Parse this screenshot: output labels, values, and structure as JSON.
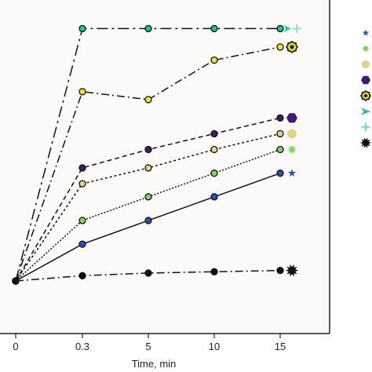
{
  "chart_data": {
    "type": "line",
    "title": "",
    "xlabel": "Time, min",
    "ylabel": "",
    "x": [
      0,
      0.3,
      5,
      10,
      15
    ],
    "x_tick_labels": [
      "0",
      "0.3",
      "5",
      "10",
      "15"
    ],
    "ylim": [
      0,
      1
    ],
    "grid": false,
    "plot_background": "#fbfaf9",
    "legend_placement": "right (markers only, labels not visible)",
    "series": [
      {
        "values": [
          0.0,
          0.96,
          0.96,
          0.96,
          0.96
        ],
        "color": "#10c9a0",
        "marker": "arrow-cross",
        "dash": "long-dash"
      },
      {
        "values": [
          0.0,
          0.72,
          0.69,
          0.84,
          0.89
        ],
        "color": "#f3e233",
        "marker": "octagon-star",
        "dash": "dash-dot"
      },
      {
        "values": [
          0.0,
          0.43,
          0.5,
          0.56,
          0.62
        ],
        "color": "#3d1a73",
        "marker": "hexagon",
        "dash": "dash"
      },
      {
        "values": [
          0.0,
          0.37,
          0.43,
          0.5,
          0.56
        ],
        "color": "#dcd68a",
        "marker": "circle",
        "dash": "dot"
      },
      {
        "values": [
          0.0,
          0.23,
          0.32,
          0.41,
          0.5
        ],
        "color": "#7ed957",
        "marker": "starburst",
        "dash": "dense-dot"
      },
      {
        "values": [
          0.0,
          0.14,
          0.23,
          0.32,
          0.41
        ],
        "color": "#2f4fb8",
        "marker": "star",
        "dash": "solid"
      },
      {
        "values": [
          0.0,
          0.02,
          0.03,
          0.035,
          0.04
        ],
        "color": "#111111",
        "marker": "starburst-dark",
        "dash": "dash-dot"
      }
    ],
    "legend_markers": [
      {
        "marker": "star",
        "color": "#2f4fb8"
      },
      {
        "marker": "starburst",
        "color": "#7ed957"
      },
      {
        "marker": "circle",
        "color": "#dcd68a"
      },
      {
        "marker": "hexagon",
        "color": "#3d1a73"
      },
      {
        "marker": "octagon-star",
        "color": "#f3e233"
      },
      {
        "marker": "arrow",
        "color": "#10c9a0"
      },
      {
        "marker": "cross-arrows",
        "color": "#7fd8c8"
      },
      {
        "marker": "starburst-dark",
        "color": "#111111"
      }
    ]
  }
}
